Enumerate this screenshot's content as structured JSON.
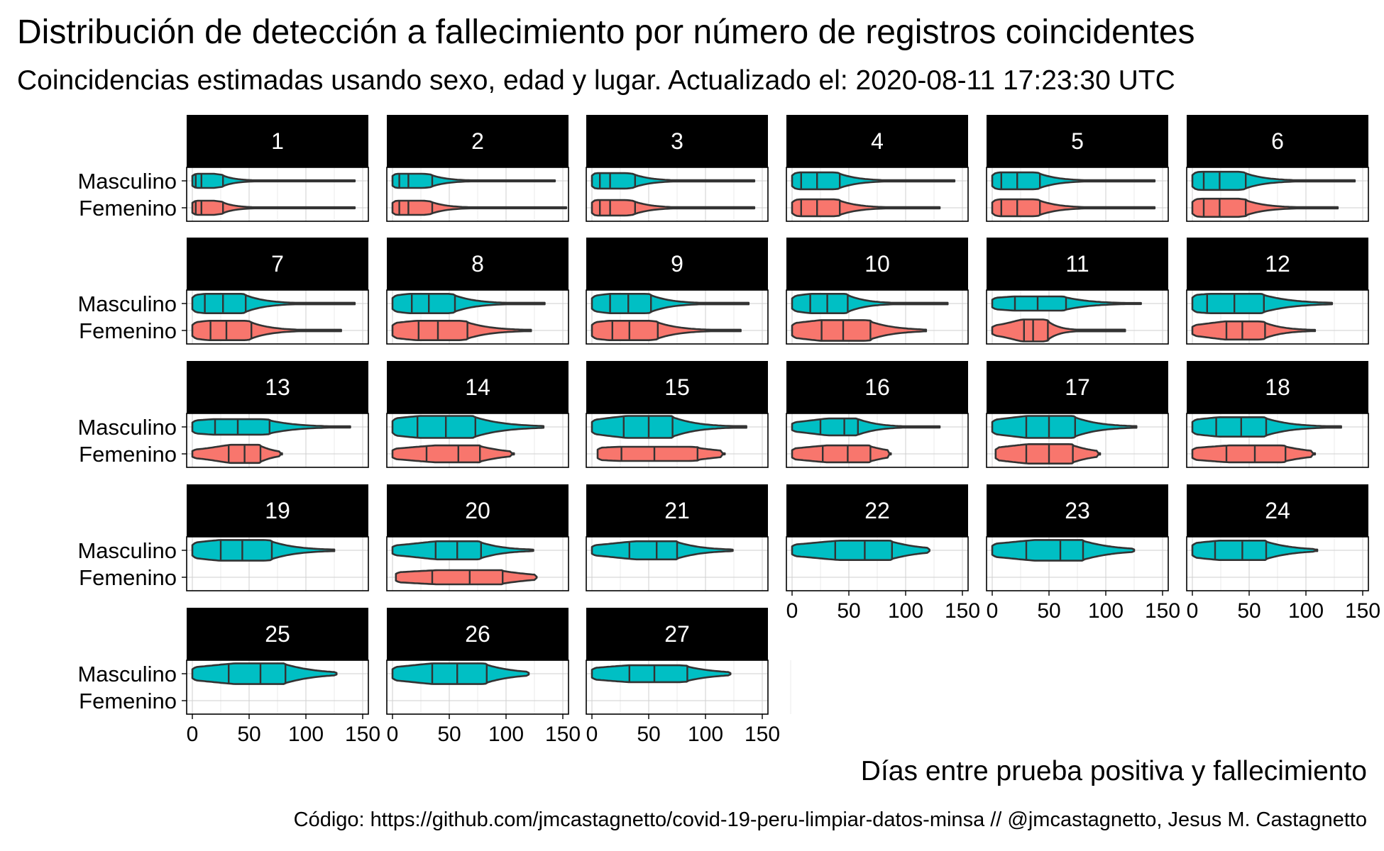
{
  "title": "Distribución de detección a fallecimiento por número de registros coincidentes",
  "subtitle": "Coincidencias estimadas usando sexo, edad y lugar. Actualizado el: 2020-08-11 17:23:30 UTC",
  "caption": "Código: https://github.com/jmcastagnetto/covid-19-peru-limpiar-datos-minsa // @jmcastagnetto, Jesus M. Castagnetto",
  "colors": {
    "Masculino": "#00BFC4",
    "Femenino": "#F8766D",
    "strip": "#000000",
    "outline": "#333333"
  },
  "chart_data": {
    "type": "violin",
    "xlabel": "Días entre prueba positiva y fallecimiento",
    "ylabel": "",
    "xlim": [
      -5,
      155
    ],
    "xticks": [
      0,
      50,
      100,
      150
    ],
    "categories": [
      "Masculino",
      "Femenino"
    ],
    "grid": true,
    "facets": [
      {
        "label": "1",
        "Masculino": {
          "min": 0,
          "max": 143,
          "q": [
            3,
            8,
            27
          ],
          "w": 0.55
        },
        "Femenino": {
          "min": 0,
          "max": 143,
          "q": [
            3,
            8,
            27
          ],
          "w": 0.55
        }
      },
      {
        "label": "2",
        "Masculino": {
          "min": 0,
          "max": 143,
          "q": [
            6,
            14,
            35
          ],
          "w": 0.55
        },
        "Femenino": {
          "min": 0,
          "max": 153,
          "q": [
            6,
            14,
            35
          ],
          "w": 0.55
        }
      },
      {
        "label": "3",
        "Masculino": {
          "min": 0,
          "max": 143,
          "q": [
            7,
            16,
            38
          ],
          "w": 0.6
        },
        "Femenino": {
          "min": 0,
          "max": 143,
          "q": [
            7,
            16,
            38
          ],
          "w": 0.6
        }
      },
      {
        "label": "4",
        "Masculino": {
          "min": 0,
          "max": 143,
          "q": [
            8,
            22,
            42
          ],
          "w": 0.65
        },
        "Femenino": {
          "min": 0,
          "max": 130,
          "q": [
            8,
            22,
            42
          ],
          "w": 0.65
        }
      },
      {
        "label": "5",
        "Masculino": {
          "min": 0,
          "max": 143,
          "q": [
            8,
            22,
            42
          ],
          "w": 0.65
        },
        "Femenino": {
          "min": 0,
          "max": 143,
          "q": [
            8,
            22,
            42
          ],
          "w": 0.65
        }
      },
      {
        "label": "6",
        "Masculino": {
          "min": 0,
          "max": 143,
          "q": [
            10,
            24,
            47
          ],
          "w": 0.7
        },
        "Femenino": {
          "min": 0,
          "max": 128,
          "q": [
            10,
            24,
            47
          ],
          "w": 0.7
        }
      },
      {
        "label": "7",
        "Masculino": {
          "min": 0,
          "max": 143,
          "q": [
            11,
            27,
            47
          ],
          "w": 0.75
        },
        "Femenino": {
          "min": 0,
          "max": 131,
          "q": [
            16,
            30,
            52
          ],
          "w": 0.75
        }
      },
      {
        "label": "8",
        "Masculino": {
          "min": 0,
          "max": 134,
          "q": [
            17,
            32,
            55
          ],
          "w": 0.75
        },
        "Femenino": {
          "min": 0,
          "max": 122,
          "q": [
            23,
            40,
            66
          ],
          "w": 0.75
        }
      },
      {
        "label": "9",
        "Masculino": {
          "min": 0,
          "max": 138,
          "q": [
            16,
            32,
            52
          ],
          "w": 0.75
        },
        "Femenino": {
          "min": 0,
          "max": 131,
          "q": [
            18,
            33,
            58
          ],
          "w": 0.75
        }
      },
      {
        "label": "10",
        "Masculino": {
          "min": 0,
          "max": 137,
          "q": [
            16,
            31,
            49
          ],
          "w": 0.75
        },
        "Femenino": {
          "min": 0,
          "max": 118,
          "q": [
            26,
            45,
            69
          ],
          "w": 0.8
        }
      },
      {
        "label": "11",
        "Masculino": {
          "min": 0,
          "max": 131,
          "q": [
            20,
            40,
            65
          ],
          "w": 0.55
        },
        "Femenino": {
          "min": 0,
          "max": 117,
          "q": [
            28,
            36,
            49
          ],
          "w": 0.85
        }
      },
      {
        "label": "12",
        "Masculino": {
          "min": 0,
          "max": 123,
          "q": [
            13,
            37,
            63
          ],
          "w": 0.75
        },
        "Femenino": {
          "min": 0,
          "max": 108,
          "q": [
            30,
            44,
            64
          ],
          "w": 0.7
        }
      },
      {
        "label": "13",
        "Masculino": {
          "min": 0,
          "max": 139,
          "q": [
            20,
            40,
            68
          ],
          "w": 0.6
        },
        "Femenino": {
          "min": 0,
          "max": 79,
          "q": [
            32,
            46,
            60
          ],
          "w": 0.7
        }
      },
      {
        "label": "14",
        "Masculino": {
          "min": 0,
          "max": 133,
          "q": [
            22,
            47,
            73
          ],
          "w": 0.85
        },
        "Femenino": {
          "min": 0,
          "max": 107,
          "q": [
            30,
            58,
            77
          ],
          "w": 0.65
        }
      },
      {
        "label": "15",
        "Masculino": {
          "min": 0,
          "max": 136,
          "q": [
            28,
            50,
            71
          ],
          "w": 0.85
        },
        "Femenino": {
          "min": 5,
          "max": 117,
          "q": [
            26,
            55,
            93
          ],
          "w": 0.55
        }
      },
      {
        "label": "16",
        "Masculino": {
          "min": 0,
          "max": 130,
          "q": [
            25,
            46,
            58
          ],
          "w": 0.65
        },
        "Femenino": {
          "min": 0,
          "max": 87,
          "q": [
            27,
            49,
            69
          ],
          "w": 0.65
        }
      },
      {
        "label": "17",
        "Masculino": {
          "min": 0,
          "max": 127,
          "q": [
            30,
            50,
            73
          ],
          "w": 0.85
        },
        "Femenino": {
          "min": 3,
          "max": 95,
          "q": [
            30,
            50,
            71
          ],
          "w": 0.75
        }
      },
      {
        "label": "18",
        "Masculino": {
          "min": 0,
          "max": 131,
          "q": [
            21,
            43,
            65
          ],
          "w": 0.75
        },
        "Femenino": {
          "min": 0,
          "max": 108,
          "q": [
            30,
            55,
            82
          ],
          "w": 0.65
        }
      },
      {
        "label": "19",
        "Masculino": {
          "min": 0,
          "max": 125,
          "q": [
            25,
            44,
            70
          ],
          "w": 0.8
        }
      },
      {
        "label": "20",
        "Masculino": {
          "min": 0,
          "max": 124,
          "q": [
            38,
            57,
            78
          ],
          "w": 0.7
        },
        "Femenino": {
          "min": 3,
          "max": 127,
          "q": [
            35,
            68,
            97
          ],
          "w": 0.55
        }
      },
      {
        "label": "21",
        "Masculino": {
          "min": 0,
          "max": 124,
          "q": [
            33,
            57,
            75
          ],
          "w": 0.7
        }
      },
      {
        "label": "22",
        "Masculino": {
          "min": 0,
          "max": 121,
          "q": [
            38,
            64,
            88
          ],
          "w": 0.75
        }
      },
      {
        "label": "23",
        "Masculino": {
          "min": 0,
          "max": 125,
          "q": [
            30,
            60,
            80
          ],
          "w": 0.8
        }
      },
      {
        "label": "24",
        "Masculino": {
          "min": 0,
          "max": 110,
          "q": [
            20,
            44,
            65
          ],
          "w": 0.75
        }
      },
      {
        "label": "25",
        "Masculino": {
          "min": 0,
          "max": 127,
          "q": [
            32,
            60,
            82
          ],
          "w": 0.8
        }
      },
      {
        "label": "26",
        "Masculino": {
          "min": 0,
          "max": 120,
          "q": [
            35,
            57,
            83
          ],
          "w": 0.8
        }
      },
      {
        "label": "27",
        "Masculino": {
          "min": 0,
          "max": 122,
          "q": [
            33,
            55,
            84
          ],
          "w": 0.65
        }
      }
    ]
  }
}
